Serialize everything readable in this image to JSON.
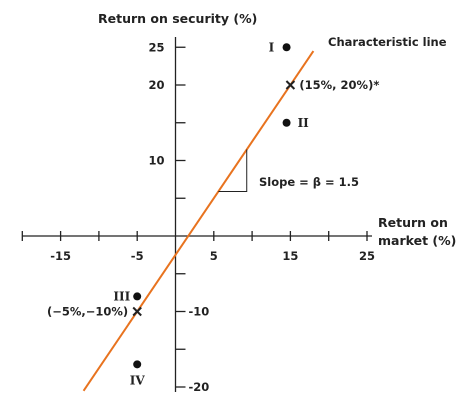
{
  "chart_data": {
    "type": "scatter",
    "title": "",
    "ylabel": "Return on security (%)",
    "xlabel_lines": [
      "Return on",
      "market (%)"
    ],
    "xlim": [
      -20,
      25
    ],
    "ylim": [
      -20,
      25
    ],
    "x_ticks": [
      -15,
      -5,
      5,
      15,
      25
    ],
    "y_ticks": [
      25,
      20,
      10,
      -10,
      -20
    ],
    "x_minor_ticks": [
      -20,
      -15,
      -10,
      -5,
      5,
      10,
      15,
      20,
      25
    ],
    "y_minor_ticks": [
      -20,
      -15,
      -10,
      -5,
      5,
      10,
      15,
      20,
      25
    ],
    "grid": false,
    "line": {
      "label": "Characteristic line",
      "slope": 1.5,
      "intercept": -2.5,
      "x_range": [
        -12,
        18
      ],
      "color": "#e8731f"
    },
    "slope_label": "Slope = β = 1.5",
    "points": [
      {
        "label": "I",
        "x": 14.5,
        "y": 25
      },
      {
        "label": "II",
        "x": 14.5,
        "y": 15
      },
      {
        "label": "III",
        "x": -5,
        "y": -8
      },
      {
        "label": "IV",
        "x": -5,
        "y": -17
      }
    ],
    "marked_points": [
      {
        "label": "(15%, 20%)*",
        "x": 15,
        "y": 20
      },
      {
        "label": "(−5%,−10%)",
        "x": -5,
        "y": -10
      }
    ],
    "colors": {
      "axis": "#222222",
      "line": "#e8731f",
      "points": "#111111"
    }
  }
}
